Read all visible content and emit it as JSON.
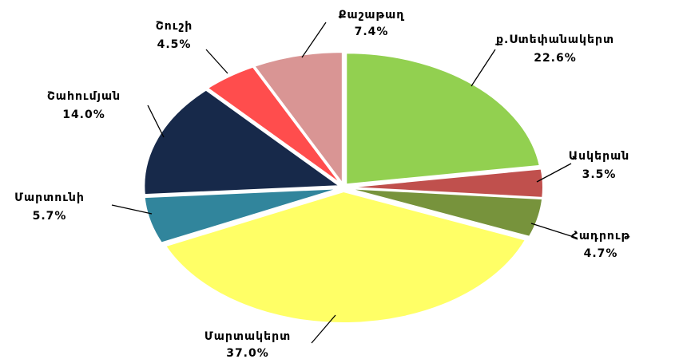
{
  "chart_data": {
    "type": "pie",
    "categories": [
      "ք.Ստեփանակերտ",
      "Ասկերան",
      "Հադրութ",
      "Մարտակերտ",
      "Մարտունի",
      "Շահումյան",
      "Շուշի",
      "Քաշաթաղ"
    ],
    "values": [
      22.6,
      3.5,
      4.7,
      37.0,
      5.7,
      14.0,
      4.5,
      7.4
    ],
    "value_labels": [
      "22.6%",
      "3.5%",
      "4.7%",
      "37.0%",
      "5.7%",
      "14.0%",
      "4.5%",
      "7.4%"
    ],
    "colors": [
      "#92d050",
      "#c0504d",
      "#77933c",
      "#ffff66",
      "#31859c",
      "#17294a",
      "#ff4d4d",
      "#d99594"
    ]
  }
}
